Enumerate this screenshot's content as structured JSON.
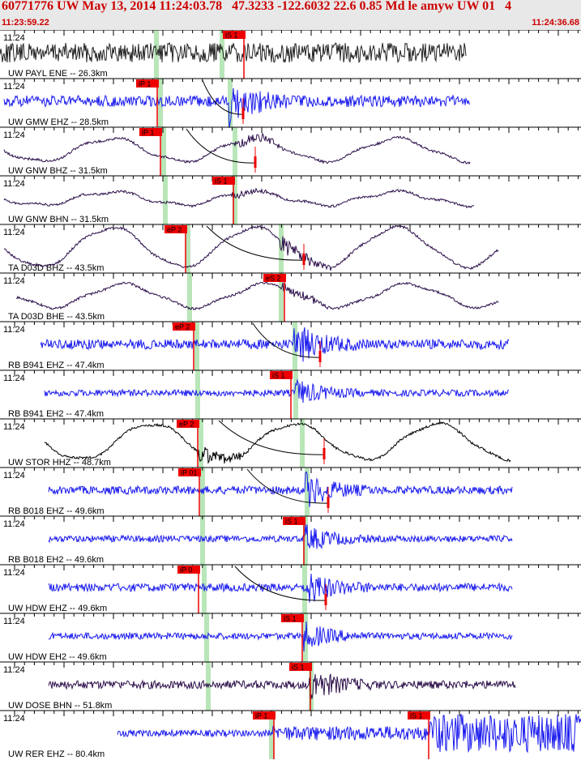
{
  "header": {
    "title": "60771776 UW May 13, 2014 11:24:03.78   47.3233 -122.6032 22.6 0.85 Md le amyw UW 01   4",
    "time_start": "11:23:59.22",
    "time_end": "11:24:36.68"
  },
  "colors": {
    "header_text": "#cc0000",
    "header_bg": "#e8e8e8",
    "pick_box": "#ee0000",
    "window": "#b8e6b8",
    "trace_blue": "#1a1aee",
    "trace_purple": "#2c0f4a",
    "trace_gray": "#222222",
    "trace_black": "#000000"
  },
  "traces": [
    {
      "label": "UW PAYL ENE -- 26.3km",
      "time_label": "11:24",
      "color": "gray",
      "style": "noise",
      "amp": 12,
      "start": 0,
      "end": 575,
      "wins": [
        [
          190,
          6
        ],
        [
          271,
          6
        ]
      ],
      "picks": [
        {
          "x": 275,
          "label": "iS 1"
        }
      ],
      "event": 300,
      "curve": null
    },
    {
      "label": "UW GMW EHZ -- 28.5km",
      "time_label": "11:24",
      "color": "blue",
      "style": "event",
      "amp": 7,
      "start": 5,
      "end": 580,
      "wins": [
        [
          195,
          6
        ],
        [
          281,
          6
        ]
      ],
      "picks": [
        {
          "x": 168,
          "label": "iP 1"
        }
      ],
      "event": 285,
      "curve": [
        250,
        300
      ]
    },
    {
      "label": "UW GNW BHZ -- 31.5km",
      "time_label": "11:24",
      "color": "purple",
      "style": "wave",
      "amp": 14,
      "start": 5,
      "end": 580,
      "wins": [
        [
          199,
          6
        ],
        [
          287,
          6
        ]
      ],
      "picks": [
        {
          "x": 172,
          "label": "iP 1"
        }
      ],
      "event": 293,
      "curve": [
        230,
        315
      ]
    },
    {
      "label": "UW GNW BHN -- 31.5km",
      "time_label": "11:24",
      "color": "purple",
      "style": "wave",
      "amp": 8,
      "start": 5,
      "end": 585,
      "wins": [
        [
          201,
          6
        ],
        [
          287,
          6
        ]
      ],
      "picks": [
        {
          "x": 262,
          "label": "iS 1"
        }
      ],
      "event": 290,
      "curve": null
    },
    {
      "label": "TA D03D BHZ -- 43.5km",
      "time_label": "11:24",
      "color": "purple",
      "style": "wave",
      "amp": 24,
      "start": 5,
      "end": 615,
      "wins": [
        [
          229,
          6
        ],
        [
          344,
          6
        ]
      ],
      "picks": [
        {
          "x": 203,
          "label": "eP 2"
        }
      ],
      "event": 350,
      "curve": [
        255,
        375
      ]
    },
    {
      "label": "TA D03D BHE -- 43.5km",
      "time_label": "11:24",
      "color": "purple",
      "style": "wave",
      "amp": 14,
      "start": 20,
      "end": 615,
      "wins": [
        [
          231,
          6
        ],
        [
          344,
          6
        ]
      ],
      "picks": [
        {
          "x": 325,
          "label": "eS 2"
        }
      ],
      "event": 352,
      "curve": null
    },
    {
      "label": "RB B941 EHZ -- 47.4km",
      "time_label": "11:24",
      "color": "blue",
      "style": "event",
      "amp": 6,
      "start": 50,
      "end": 628,
      "wins": [
        [
          240,
          6
        ],
        [
          361,
          6
        ]
      ],
      "picks": [
        {
          "x": 213,
          "label": "eP 2"
        }
      ],
      "event": 366,
      "curve": [
        312,
        395
      ]
    },
    {
      "label": "RB B941 EH2 -- 47.4km",
      "time_label": "11:24",
      "color": "blue",
      "style": "event",
      "amp": 4,
      "start": 55,
      "end": 628,
      "wins": [
        [
          241,
          6
        ],
        [
          362,
          6
        ]
      ],
      "picks": [
        {
          "x": 333,
          "label": "iS 1"
        }
      ],
      "event": 366,
      "curve": null
    },
    {
      "label": "UW STOR HHZ -- 48.7km",
      "time_label": "11:24",
      "color": "black",
      "style": "wave",
      "amp": 22,
      "start": 55,
      "end": 630,
      "wins": [
        [
          245,
          6
        ],
        [
          370,
          6
        ]
      ],
      "picks": [
        {
          "x": 218,
          "label": "eP 2"
        }
      ],
      "event": 248,
      "curve": [
        270,
        400
      ]
    },
    {
      "label": "RB B018 EHZ -- 49.6km",
      "time_label": "11:24",
      "color": "blue",
      "style": "event",
      "amp": 5,
      "start": 60,
      "end": 632,
      "wins": [
        [
          247,
          6
        ],
        [
          376,
          6
        ]
      ],
      "picks": [
        {
          "x": 220,
          "label": "iP 01"
        }
      ],
      "event": 380,
      "curve": [
        305,
        405
      ]
    },
    {
      "label": "RB B018 EH2 -- 49.6km",
      "time_label": "11:24",
      "color": "blue",
      "style": "event",
      "amp": 4,
      "start": 60,
      "end": 632,
      "wins": [
        [
          247,
          6
        ],
        [
          374,
          6
        ]
      ],
      "picks": [
        {
          "x": 349,
          "label": "iS 1"
        }
      ],
      "event": 378,
      "curve": null
    },
    {
      "label": "UW HDW EHZ -- 49.6km",
      "time_label": "11:24",
      "color": "blue",
      "style": "event",
      "amp": 5,
      "start": 60,
      "end": 632,
      "wins": [
        [
          249,
          6
        ],
        [
          373,
          6
        ]
      ],
      "picks": [
        {
          "x": 219,
          "label": "iP 0"
        }
      ],
      "event": 380,
      "curve": [
        290,
        402
      ]
    },
    {
      "label": "UW HDW EH2 -- 49.6km",
      "time_label": "11:24",
      "color": "blue",
      "style": "event",
      "amp": 4,
      "start": 60,
      "end": 632,
      "wins": [
        [
          252,
          6
        ],
        [
          374,
          6
        ]
      ],
      "picks": [
        {
          "x": 347,
          "label": "iS 1"
        }
      ],
      "event": 378,
      "curve": null
    },
    {
      "label": "UW DOSE BHN -- 51.8km",
      "time_label": "11:24",
      "color": "purple",
      "style": "event",
      "amp": 5,
      "start": 60,
      "end": 636,
      "wins": [
        [
          254,
          6
        ],
        [
          381,
          6
        ]
      ],
      "picks": [
        {
          "x": 357,
          "label": "iS 1"
        }
      ],
      "event": 385,
      "curve": null
    },
    {
      "label": "UW RER EHZ -- 80.4km",
      "time_label": "11:24",
      "color": "blue",
      "style": "rer",
      "amp": 4,
      "start": 145,
      "end": 717,
      "wins": [
        [
          332,
          6
        ]
      ],
      "picks": [
        {
          "x": 312,
          "label": "iP 1"
        },
        {
          "x": 503,
          "label": "iS 1"
        }
      ],
      "event": 530,
      "curve": null
    }
  ]
}
